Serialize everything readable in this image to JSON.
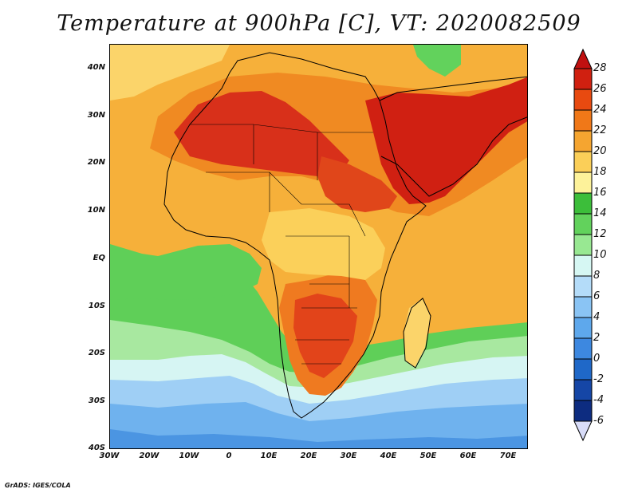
{
  "title": "Temperature at 900hPa [C], VT: 2020082509",
  "footer": "GrADS: IGES/COLA",
  "map": {
    "lon_range": [
      -30,
      75
    ],
    "lat_range": [
      -40,
      45
    ],
    "lat_labels": [
      "40N",
      "30N",
      "20N",
      "10N",
      "EQ",
      "10S",
      "20S",
      "30S",
      "40S"
    ],
    "lon_labels": [
      "30W",
      "20W",
      "10W",
      "0",
      "10E",
      "20E",
      "30E",
      "40E",
      "50E",
      "60E",
      "70E"
    ]
  },
  "colorbar": {
    "labels": [
      "28",
      "26",
      "24",
      "22",
      "20",
      "18",
      "16",
      "14",
      "12",
      "10",
      "8",
      "6",
      "4",
      "2",
      "0",
      "-2",
      "-4",
      "-6"
    ],
    "colors": [
      "#d02010",
      "#e84a10",
      "#f07818",
      "#f5a530",
      "#fbcf58",
      "#fdf29a",
      "#3cbe3a",
      "#62d25c",
      "#98e892",
      "#d6f7f3",
      "#b4dcf9",
      "#8ac4f4",
      "#5ea8ec",
      "#3d88e0",
      "#1f68c8",
      "#1546a6",
      "#0d2c80"
    ],
    "top_color": "#c01010",
    "bottom_color": "#d8dcf8"
  }
}
